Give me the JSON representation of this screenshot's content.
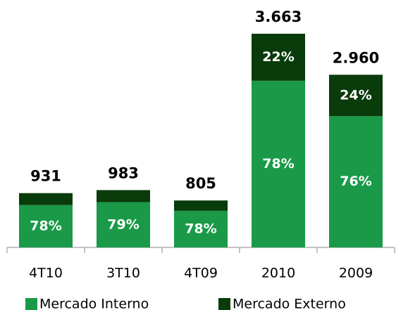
{
  "chart_data": {
    "type": "stacked-bar",
    "categories": [
      "4T10",
      "3T10",
      "4T09",
      "2010",
      "2009"
    ],
    "totals": {
      "values": [
        931,
        983,
        805,
        3663,
        2960
      ],
      "value_labels": [
        "931",
        "983",
        "805",
        "3.663",
        "2.960"
      ]
    },
    "series": [
      {
        "name": "Mercado Interno",
        "color": "#1a9a48",
        "values": [
          78,
          79,
          78,
          78,
          76
        ],
        "value_labels": [
          "78%",
          "79%",
          "78%",
          "78%",
          "76%"
        ]
      },
      {
        "name": "Mercado Externo",
        "color": "#0a3b0a",
        "values": [
          22,
          21,
          22,
          22,
          24
        ],
        "value_labels": [
          null,
          null,
          null,
          "22%",
          "24%"
        ]
      }
    ],
    "legend": "bottom"
  }
}
